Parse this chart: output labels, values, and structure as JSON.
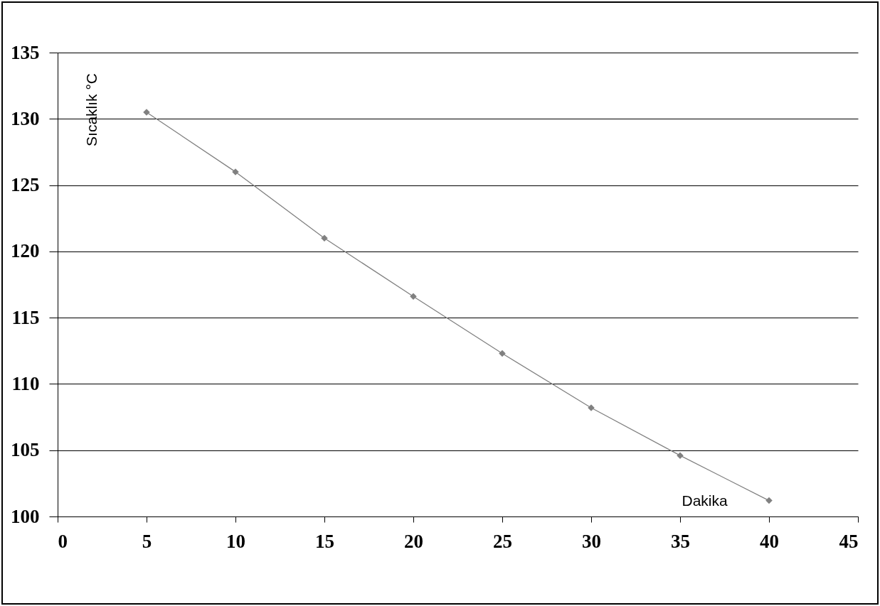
{
  "chart_data": {
    "type": "line",
    "xlabel": "Dakika",
    "ylabel": "Sıcaklık °C",
    "x": [
      5,
      10,
      15,
      20,
      25,
      30,
      35,
      40
    ],
    "series": [
      {
        "color": "#808080",
        "values": [
          130.5,
          126,
          121,
          116.6,
          112.3,
          108.2,
          104.6,
          101.2
        ]
      }
    ],
    "xlim": [
      0,
      45
    ],
    "xticks": [
      0,
      5,
      10,
      15,
      20,
      25,
      30,
      35,
      40,
      45
    ],
    "ylim": [
      100,
      135
    ],
    "yticks": [
      100,
      105,
      110,
      115,
      120,
      125,
      130,
      135
    ],
    "grid": "y",
    "marker": "diamond",
    "line_style": "solid"
  }
}
